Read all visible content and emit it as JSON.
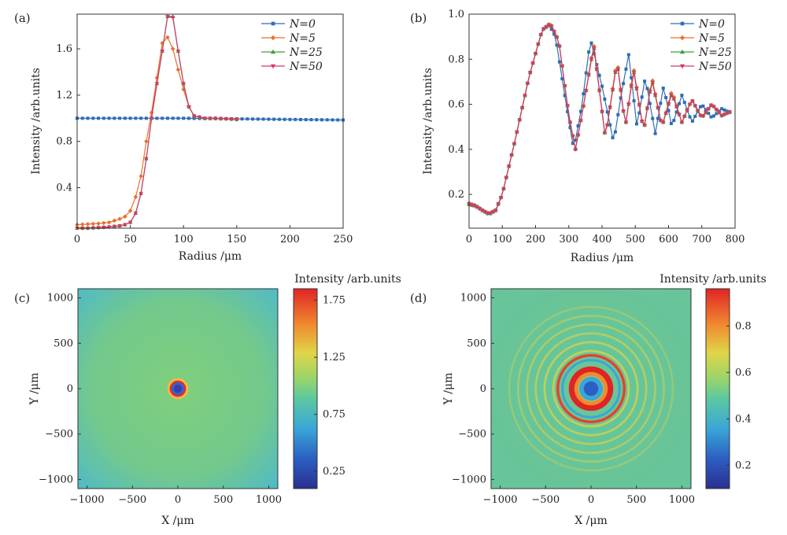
{
  "chart_data": [
    {
      "panel": "(a)",
      "type": "line",
      "xlabel": "Radius /μm",
      "ylabel": "Intensity /arb.units",
      "xlim": [
        0,
        250
      ],
      "ylim": [
        0.05,
        1.9
      ],
      "xticks": [
        "0",
        "50",
        "100",
        "150",
        "200",
        "250"
      ],
      "yticks": [
        "0.4",
        "0.8",
        "1.2",
        "1.6"
      ],
      "series": [
        {
          "name": "N=0",
          "color": "#2f6db5",
          "marker": "square",
          "x": [
            0,
            50,
            100,
            150,
            200,
            250
          ],
          "y": [
            1.0,
            1.0,
            1.0,
            0.995,
            0.99,
            0.985
          ]
        },
        {
          "name": "N=5",
          "color": "#e8702a",
          "marker": "diamond",
          "x": [
            0,
            10,
            20,
            30,
            40,
            45,
            50,
            55,
            60,
            65,
            70,
            75,
            80,
            85,
            90,
            95,
            100,
            105,
            110,
            120,
            130,
            140,
            150
          ],
          "y": [
            0.08,
            0.085,
            0.09,
            0.1,
            0.13,
            0.15,
            0.2,
            0.32,
            0.5,
            0.8,
            1.05,
            1.35,
            1.65,
            1.7,
            1.6,
            1.42,
            1.25,
            1.1,
            1.02,
            1.0,
            1.0,
            0.995,
            0.99
          ]
        },
        {
          "name": "N=25",
          "color": "#3aa13a",
          "marker": "triangle",
          "x": [
            0,
            10,
            20,
            30,
            40,
            45,
            50,
            55,
            60,
            65,
            70,
            75,
            80,
            85,
            90,
            95,
            100,
            105,
            110,
            120,
            130,
            140,
            150
          ],
          "y": [
            0.05,
            0.05,
            0.055,
            0.06,
            0.07,
            0.08,
            0.1,
            0.18,
            0.35,
            0.65,
            1.0,
            1.3,
            1.58,
            1.88,
            1.88,
            1.58,
            1.3,
            1.1,
            1.02,
            1.0,
            1.0,
            0.995,
            0.99
          ]
        },
        {
          "name": "N=50",
          "color": "#d13a6a",
          "marker": "downtriangle",
          "x": [
            0,
            10,
            20,
            30,
            40,
            45,
            50,
            55,
            60,
            65,
            70,
            75,
            80,
            85,
            90,
            95,
            100,
            105,
            110,
            120,
            130,
            140,
            150
          ],
          "y": [
            0.05,
            0.05,
            0.055,
            0.06,
            0.07,
            0.08,
            0.1,
            0.18,
            0.35,
            0.65,
            1.0,
            1.3,
            1.58,
            1.88,
            1.87,
            1.58,
            1.3,
            1.1,
            1.02,
            1.0,
            1.0,
            0.995,
            0.99
          ]
        }
      ],
      "legend": "top-right"
    },
    {
      "panel": "(b)",
      "type": "line",
      "xlabel": "Radius /μm",
      "ylabel": "Intensity /arb.units",
      "xlim": [
        0,
        800
      ],
      "ylim": [
        0.05,
        1.0
      ],
      "xticks": [
        "0",
        "100",
        "200",
        "300",
        "400",
        "500",
        "600",
        "700",
        "800"
      ],
      "yticks": [
        "0.2",
        "0.4",
        "0.6",
        "0.8",
        "1.0"
      ],
      "series": [
        {
          "name": "N=0",
          "color": "#2f6db5",
          "marker": "square",
          "x": [
            0,
            20,
            40,
            60,
            80,
            100,
            140,
            180,
            220,
            240,
            260,
            290,
            315,
            340,
            365,
            400,
            435,
            455,
            480,
            505,
            530,
            560,
            585,
            610,
            640,
            670,
            700,
            730,
            760,
            790
          ],
          "y": [
            0.16,
            0.15,
            0.13,
            0.115,
            0.13,
            0.2,
            0.45,
            0.72,
            0.93,
            0.955,
            0.9,
            0.62,
            0.4,
            0.6,
            0.89,
            0.68,
            0.43,
            0.62,
            0.82,
            0.5,
            0.72,
            0.47,
            0.68,
            0.5,
            0.64,
            0.52,
            0.6,
            0.54,
            0.58,
            0.56
          ]
        },
        {
          "name": "N=5",
          "color": "#e8702a",
          "marker": "diamond",
          "x": [
            0,
            20,
            40,
            60,
            80,
            100,
            140,
            180,
            220,
            245,
            270,
            300,
            320,
            345,
            375,
            410,
            445,
            470,
            495,
            525,
            550,
            580,
            610,
            640,
            670,
            700,
            730,
            760,
            790
          ],
          "y": [
            0.16,
            0.15,
            0.13,
            0.115,
            0.13,
            0.2,
            0.45,
            0.72,
            0.93,
            0.96,
            0.88,
            0.55,
            0.4,
            0.6,
            0.87,
            0.45,
            0.8,
            0.5,
            0.76,
            0.48,
            0.72,
            0.5,
            0.66,
            0.52,
            0.62,
            0.54,
            0.6,
            0.55,
            0.57
          ]
        },
        {
          "name": "N=25",
          "color": "#3aa13a",
          "marker": "triangle",
          "x": [
            0,
            20,
            40,
            60,
            80,
            100,
            140,
            180,
            220,
            245,
            270,
            300,
            320,
            345,
            375,
            410,
            445,
            470,
            495,
            525,
            550,
            580,
            610,
            640,
            670,
            700,
            730,
            760,
            790
          ],
          "y": [
            0.155,
            0.148,
            0.128,
            0.112,
            0.128,
            0.2,
            0.45,
            0.72,
            0.93,
            0.955,
            0.88,
            0.55,
            0.4,
            0.6,
            0.86,
            0.45,
            0.79,
            0.5,
            0.75,
            0.48,
            0.71,
            0.5,
            0.65,
            0.52,
            0.62,
            0.54,
            0.6,
            0.55,
            0.57
          ]
        },
        {
          "name": "N=50",
          "color": "#d13a6a",
          "marker": "downtriangle",
          "x": [
            0,
            20,
            40,
            60,
            80,
            100,
            140,
            180,
            220,
            245,
            270,
            300,
            320,
            345,
            375,
            410,
            445,
            470,
            495,
            525,
            550,
            580,
            610,
            640,
            670,
            700,
            730,
            760,
            790
          ],
          "y": [
            0.155,
            0.148,
            0.128,
            0.112,
            0.128,
            0.2,
            0.45,
            0.72,
            0.93,
            0.955,
            0.88,
            0.55,
            0.4,
            0.6,
            0.86,
            0.45,
            0.79,
            0.5,
            0.75,
            0.48,
            0.71,
            0.5,
            0.65,
            0.52,
            0.62,
            0.54,
            0.6,
            0.55,
            0.57
          ]
        }
      ],
      "legend": "top-right"
    },
    {
      "panel": "(c)",
      "type": "heatmap",
      "xlabel": "X /μm",
      "ylabel": "Y /μm",
      "colorbar_label": "Intensity /arb.units",
      "xlim": [
        -1100,
        1100
      ],
      "ylim": [
        -1100,
        1100
      ],
      "xticks": [
        "−1000",
        "−500",
        "0",
        "500",
        "1000"
      ],
      "yticks": [
        "1000",
        "500",
        "0",
        "−500",
        "−1000"
      ],
      "colorbar_range": [
        0.1,
        1.85
      ],
      "colorbar_ticks": [
        "1.75",
        "1.25",
        "0.75",
        "0.25"
      ],
      "features": [
        {
          "kind": "dark-core",
          "radius": 70
        },
        {
          "kind": "bright-ring",
          "radius": 90
        }
      ],
      "background_level": 1.0
    },
    {
      "panel": "(d)",
      "type": "heatmap",
      "xlabel": "X /μm",
      "ylabel": "Y /μm",
      "colorbar_label": "Intensity /arb.units",
      "xlim": [
        -1100,
        1100
      ],
      "ylim": [
        -1100,
        1100
      ],
      "xticks": [
        "−1000",
        "−500",
        "0",
        "500",
        "1000"
      ],
      "yticks": [
        "1000",
        "500",
        "0",
        "−500",
        "−1000"
      ],
      "colorbar_range": [
        0.1,
        0.96
      ],
      "colorbar_ticks": [
        "0.8",
        "0.6",
        "0.4",
        "0.2"
      ],
      "features": [
        {
          "kind": "dark-core",
          "radius": 80
        },
        {
          "kind": "bright-ring",
          "radius": 245
        },
        {
          "kind": "concentric-rings",
          "max_radius": 900
        }
      ],
      "background_level": 0.55
    }
  ],
  "legend_labels": [
    "N=0",
    "N=5",
    "N=25",
    "N=50"
  ],
  "panel_labels": [
    "(a)",
    "(b)",
    "(c)",
    "(d)"
  ]
}
